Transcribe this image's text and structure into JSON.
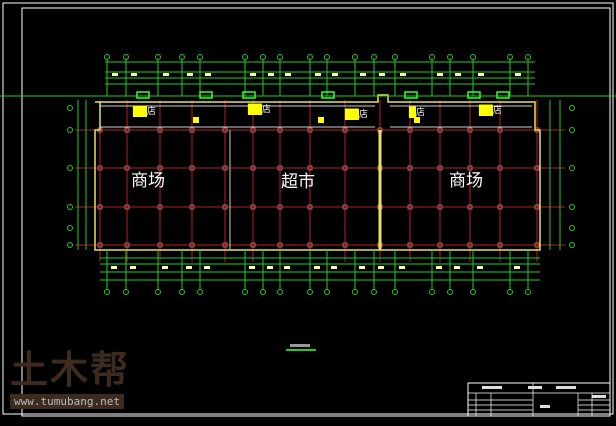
{
  "drawing": {
    "type": "CAD floor plan",
    "colors": {
      "background": "#000000",
      "grid": "#b22222",
      "dimension": "#22cc22",
      "wall": "#e8e060",
      "partition": "#cccccc",
      "highlight": "#ffff00"
    },
    "rooms": [
      {
        "label": "商场"
      },
      {
        "label": "超市"
      },
      {
        "label": "商场"
      }
    ],
    "shops": [
      {
        "label": "店"
      },
      {
        "label": "店"
      },
      {
        "label": "店"
      },
      {
        "label": "店"
      },
      {
        "label": "店"
      }
    ]
  },
  "watermark": {
    "text": "土木帮",
    "url": "www.tumubang.net"
  }
}
